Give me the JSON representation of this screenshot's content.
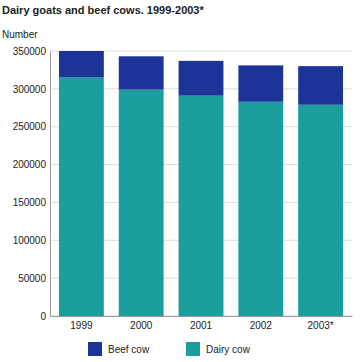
{
  "chart_data": {
    "type": "bar",
    "title": "Dairy goats and beef cows. 1999-2003*",
    "y_label": "Number",
    "categories": [
      "1999",
      "2000",
      "2001",
      "2002",
      "2003*"
    ],
    "series": [
      {
        "name": "Dairy cow",
        "color": "#1a9e9e",
        "values": [
          315000,
          299000,
          291000,
          283000,
          279000
        ]
      },
      {
        "name": "Beef cow",
        "color": "#1c3497",
        "values": [
          35000,
          44000,
          46000,
          48000,
          51000
        ]
      }
    ],
    "stacked": true,
    "ylim": [
      0,
      350000
    ],
    "yticks": [
      0,
      50000,
      100000,
      150000,
      200000,
      250000,
      300000,
      350000
    ],
    "grid": true,
    "legend": "bottom"
  }
}
